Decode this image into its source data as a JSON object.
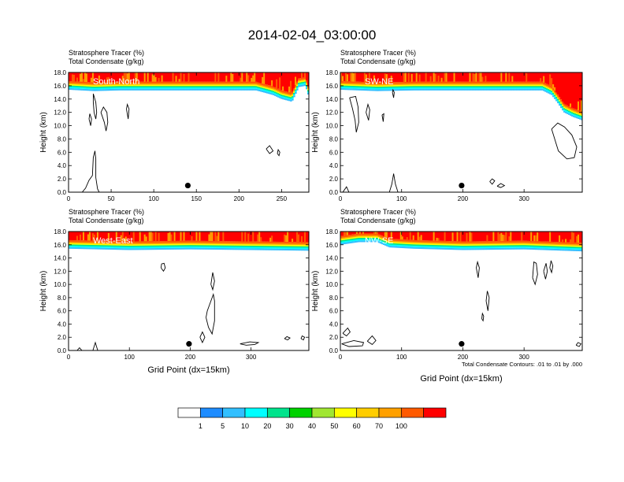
{
  "figure": {
    "title": "2014-02-04_03:00:00",
    "contour_note": "Total Condensate Contours: .01 to .01 by .000"
  },
  "colorbar": {
    "labels": [
      "1",
      "5",
      "10",
      "20",
      "30",
      "40",
      "50",
      "60",
      "70",
      "100"
    ],
    "colors": [
      "#ffffff",
      "#1e8cff",
      "#32bfff",
      "#00ffff",
      "#00e38c",
      "#00d200",
      "#a0e632",
      "#ffff00",
      "#ffcd00",
      "#ffa000",
      "#ff5a00",
      "#ff0000"
    ]
  },
  "chart_data": [
    {
      "type": "heatmap",
      "panel_label": "South-North",
      "title_line1": "Stratosphere Tracer   (%)",
      "title_line2": "Total Condensate   (g/kg)",
      "ylabel": "Height (km)",
      "xlabel": "",
      "xlim": [
        0,
        282
      ],
      "ylim": [
        0,
        18
      ],
      "xticks": [
        0,
        50,
        100,
        150,
        200,
        250
      ],
      "xtick_labels": [
        "0",
        "50",
        "100",
        "150",
        "200",
        "250"
      ],
      "yticks": [
        0,
        2,
        4,
        6,
        8,
        10,
        12,
        14,
        16,
        18
      ],
      "ytick_labels": [
        "0.0",
        "2.0",
        "4.0",
        "6.0",
        "8.0",
        "10.0",
        "12.0",
        "14.0",
        "16.0",
        "18.0"
      ],
      "tropopause": [
        [
          0,
          15.6
        ],
        [
          30,
          15.4
        ],
        [
          60,
          15.5
        ],
        [
          220,
          15.5
        ],
        [
          240,
          14.8
        ],
        [
          250,
          14.2
        ],
        [
          262,
          13.8
        ],
        [
          270,
          16.0
        ],
        [
          278,
          16.2
        ],
        [
          282,
          14.5
        ]
      ],
      "marker": [
        140,
        1.0
      ],
      "condensate_contours": [
        [
          [
            29,
            14.8
          ],
          [
            32,
            13.5
          ],
          [
            33,
            12
          ],
          [
            32,
            11
          ],
          [
            30,
            12
          ],
          [
            29,
            13.5
          ],
          [
            29,
            14.8
          ]
        ],
        [
          [
            38,
            12
          ],
          [
            42,
            10.5
          ],
          [
            44,
            9.2
          ],
          [
            46,
            10.5
          ],
          [
            45,
            12
          ],
          [
            41,
            12.8
          ],
          [
            38,
            12
          ]
        ],
        [
          [
            24,
            11
          ],
          [
            26,
            10
          ],
          [
            27,
            11
          ],
          [
            25,
            11.8
          ],
          [
            24,
            11
          ]
        ],
        [
          [
            68,
            12.5
          ],
          [
            70,
            11
          ],
          [
            71,
            12.5
          ],
          [
            69,
            13.2
          ],
          [
            68,
            12.5
          ]
        ],
        [
          [
            232,
            6.5
          ],
          [
            236,
            5.8
          ],
          [
            240,
            6.2
          ],
          [
            236,
            7.0
          ],
          [
            232,
            6.5
          ]
        ],
        [
          [
            245,
            5.8
          ],
          [
            247,
            5.5
          ],
          [
            248,
            6.0
          ],
          [
            246,
            6.4
          ],
          [
            245,
            5.8
          ]
        ],
        [
          [
            16,
            0
          ],
          [
            20,
            0.6
          ],
          [
            24,
            1.8
          ],
          [
            28,
            2.5
          ],
          [
            29,
            5.2
          ],
          [
            31,
            6.2
          ],
          [
            32,
            5.0
          ],
          [
            32,
            2.2
          ],
          [
            34,
            0.5
          ],
          [
            36,
            0
          ]
        ]
      ]
    },
    {
      "type": "heatmap",
      "panel_label": "SW-NE",
      "title_line1": "Stratosphere Tracer   (%)",
      "title_line2": "Total Condensate   (g/kg)",
      "ylabel": "Height (km)",
      "xlabel": "",
      "xlim": [
        0,
        395
      ],
      "ylim": [
        0,
        18
      ],
      "xticks": [
        0,
        100,
        200,
        300
      ],
      "xtick_labels": [
        "0",
        "100",
        "200",
        "300"
      ],
      "yticks": [
        0,
        2,
        4,
        6,
        8,
        10,
        12,
        14,
        16,
        18
      ],
      "ytick_labels": [
        "0.0",
        "2.0",
        "4.0",
        "6.0",
        "8.0",
        "10.0",
        "12.0",
        "14.0",
        "16.0",
        "18.0"
      ],
      "tropopause": [
        [
          0,
          15.6
        ],
        [
          60,
          15.4
        ],
        [
          120,
          15.5
        ],
        [
          330,
          15.5
        ],
        [
          345,
          14.8
        ],
        [
          355,
          13.6
        ],
        [
          365,
          12.2
        ],
        [
          380,
          11.5
        ],
        [
          395,
          11.0
        ]
      ],
      "marker": [
        198,
        1.0
      ],
      "condensate_contours": [
        [
          [
            15,
            14.2
          ],
          [
            20,
            12.5
          ],
          [
            24,
            10.8
          ],
          [
            26,
            9.0
          ],
          [
            30,
            10.5
          ],
          [
            29,
            12.8
          ],
          [
            25,
            14.4
          ],
          [
            15,
            14.2
          ]
        ],
        [
          [
            42,
            12
          ],
          [
            46,
            10.8
          ],
          [
            48,
            12.4
          ],
          [
            45,
            13.2
          ],
          [
            42,
            12
          ]
        ],
        [
          [
            68,
            11.6
          ],
          [
            70,
            10.6
          ],
          [
            71,
            11.8
          ],
          [
            68,
            11.6
          ]
        ],
        [
          [
            85,
            15
          ],
          [
            87,
            14.2
          ],
          [
            88,
            15
          ],
          [
            86,
            15.4
          ],
          [
            85,
            15
          ]
        ],
        [
          [
            345,
            9.5
          ],
          [
            350,
            8.0
          ],
          [
            356,
            6.2
          ],
          [
            370,
            5.0
          ],
          [
            382,
            5.2
          ],
          [
            386,
            6.8
          ],
          [
            378,
            8.6
          ],
          [
            366,
            9.8
          ],
          [
            355,
            10.4
          ],
          [
            345,
            9.5
          ]
        ],
        [
          [
            244,
            1.6
          ],
          [
            248,
            1.2
          ],
          [
            252,
            1.7
          ],
          [
            248,
            2.0
          ],
          [
            244,
            1.6
          ]
        ],
        [
          [
            256,
            0.9
          ],
          [
            262,
            0.7
          ],
          [
            268,
            1.0
          ],
          [
            262,
            1.3
          ],
          [
            256,
            0.9
          ]
        ],
        [
          [
            80,
            0
          ],
          [
            84,
            1.2
          ],
          [
            87,
            2.8
          ],
          [
            90,
            1.2
          ],
          [
            94,
            0
          ]
        ],
        [
          [
            4,
            0
          ],
          [
            10,
            0.8
          ],
          [
            14,
            0
          ]
        ]
      ]
    },
    {
      "type": "heatmap",
      "panel_label": "West-East",
      "title_line1": "Stratosphere Tracer   (%)",
      "title_line2": "Total Condensate   (g/kg)",
      "ylabel": "Height (km)",
      "xlabel": "Grid Point (dx=15km)",
      "xlim": [
        0,
        395
      ],
      "ylim": [
        0,
        18
      ],
      "xticks": [
        0,
        100,
        200,
        300
      ],
      "xtick_labels": [
        "0",
        "100",
        "200",
        "300"
      ],
      "yticks": [
        0,
        2,
        4,
        6,
        8,
        10,
        12,
        14,
        16,
        18
      ],
      "ytick_labels": [
        "0.0",
        "2.0",
        "4.0",
        "6.0",
        "8.0",
        "10.0",
        "12.0",
        "14.0",
        "16.0",
        "18.0"
      ],
      "tropopause": [
        [
          0,
          15.6
        ],
        [
          100,
          15.4
        ],
        [
          200,
          15.5
        ],
        [
          300,
          15.4
        ],
        [
          395,
          15.3
        ]
      ],
      "marker": [
        198,
        1.0
      ],
      "condensate_contours": [
        [
          [
            152,
            12.5
          ],
          [
            156,
            12
          ],
          [
            159,
            12.5
          ],
          [
            157,
            13.2
          ],
          [
            153,
            13.1
          ],
          [
            152,
            12.5
          ]
        ],
        [
          [
            234,
            10
          ],
          [
            237,
            11.8
          ],
          [
            240,
            10.5
          ],
          [
            237,
            9.2
          ],
          [
            234,
            10
          ]
        ],
        [
          [
            226,
            5
          ],
          [
            230,
            3.5
          ],
          [
            236,
            2.5
          ],
          [
            240,
            4.5
          ],
          [
            240,
            7.5
          ],
          [
            238,
            8.5
          ],
          [
            234,
            7.5
          ],
          [
            228,
            6.0
          ],
          [
            226,
            5
          ]
        ],
        [
          [
            216,
            2.0
          ],
          [
            220,
            1.2
          ],
          [
            224,
            2.0
          ],
          [
            220,
            2.8
          ],
          [
            216,
            2.0
          ]
        ],
        [
          [
            282,
            1.0
          ],
          [
            292,
            0.8
          ],
          [
            306,
            0.9
          ],
          [
            312,
            1.2
          ],
          [
            298,
            1.3
          ],
          [
            282,
            1.0
          ]
        ],
        [
          [
            355,
            1.8
          ],
          [
            360,
            1.6
          ],
          [
            364,
            1.9
          ],
          [
            359,
            2.1
          ],
          [
            355,
            1.8
          ]
        ],
        [
          [
            382,
            1.8
          ],
          [
            386,
            1.6
          ],
          [
            388,
            2.0
          ],
          [
            384,
            2.2
          ],
          [
            382,
            1.8
          ]
        ],
        [
          [
            40,
            0
          ],
          [
            44,
            1.2
          ],
          [
            46,
            0.6
          ],
          [
            48,
            0
          ]
        ],
        [
          [
            14,
            0
          ],
          [
            18,
            0.4
          ],
          [
            22,
            0
          ]
        ]
      ]
    },
    {
      "type": "heatmap",
      "panel_label": "NW-SE",
      "title_line1": "Stratosphere Tracer   (%)",
      "title_line2": "Total Condensate   (g/kg)",
      "ylabel": "Height (km)",
      "xlabel": "Grid Point (dx=15km)",
      "xlim": [
        0,
        395
      ],
      "ylim": [
        0,
        18
      ],
      "xticks": [
        0,
        100,
        200,
        300
      ],
      "xtick_labels": [
        "0",
        "100",
        "200",
        "300"
      ],
      "yticks": [
        0,
        2,
        4,
        6,
        8,
        10,
        12,
        14,
        16,
        18
      ],
      "ytick_labels": [
        "0.0",
        "2.0",
        "4.0",
        "6.0",
        "8.0",
        "10.0",
        "12.0",
        "14.0",
        "16.0",
        "18.0"
      ],
      "tropopause": [
        [
          0,
          16.2
        ],
        [
          30,
          16.6
        ],
        [
          60,
          16.6
        ],
        [
          80,
          15.8
        ],
        [
          120,
          15.6
        ],
        [
          200,
          15.4
        ],
        [
          300,
          15.5
        ],
        [
          395,
          15.2
        ]
      ],
      "marker": [
        198,
        1.0
      ],
      "condensate_contours": [
        [
          [
            222,
            12.5
          ],
          [
            225,
            11.0
          ],
          [
            227,
            12.5
          ],
          [
            224,
            13.4
          ],
          [
            222,
            12.5
          ]
        ],
        [
          [
            238,
            7.5
          ],
          [
            241,
            6.0
          ],
          [
            243,
            8.0
          ],
          [
            240,
            9.0
          ],
          [
            238,
            7.5
          ]
        ],
        [
          [
            231,
            4.8
          ],
          [
            233,
            4.5
          ],
          [
            234,
            5.2
          ],
          [
            232,
            5.6
          ],
          [
            231,
            4.8
          ]
        ],
        [
          [
            314,
            11
          ],
          [
            318,
            10
          ],
          [
            322,
            11.5
          ],
          [
            320,
            13.2
          ],
          [
            316,
            13.4
          ],
          [
            314,
            11
          ]
        ],
        [
          [
            332,
            12
          ],
          [
            335,
            10.8
          ],
          [
            338,
            12
          ],
          [
            336,
            13.2
          ],
          [
            332,
            12
          ]
        ],
        [
          [
            342,
            12.5
          ],
          [
            345,
            11.8
          ],
          [
            347,
            12.8
          ],
          [
            344,
            13.6
          ],
          [
            342,
            12.5
          ]
        ],
        [
          [
            4,
            2.6
          ],
          [
            10,
            2.2
          ],
          [
            16,
            2.8
          ],
          [
            12,
            3.4
          ],
          [
            4,
            2.6
          ]
        ],
        [
          [
            2,
            1.0
          ],
          [
            14,
            0.6
          ],
          [
            36,
            0.7
          ],
          [
            38,
            1.2
          ],
          [
            22,
            1.5
          ],
          [
            2,
            1.0
          ]
        ],
        [
          [
            44,
            1.4
          ],
          [
            52,
            0.9
          ],
          [
            58,
            1.5
          ],
          [
            52,
            2.2
          ],
          [
            44,
            1.4
          ]
        ],
        [
          [
            385,
            0.8
          ],
          [
            390,
            0.6
          ],
          [
            393,
            1.0
          ],
          [
            388,
            1.2
          ],
          [
            385,
            0.8
          ]
        ]
      ]
    }
  ]
}
